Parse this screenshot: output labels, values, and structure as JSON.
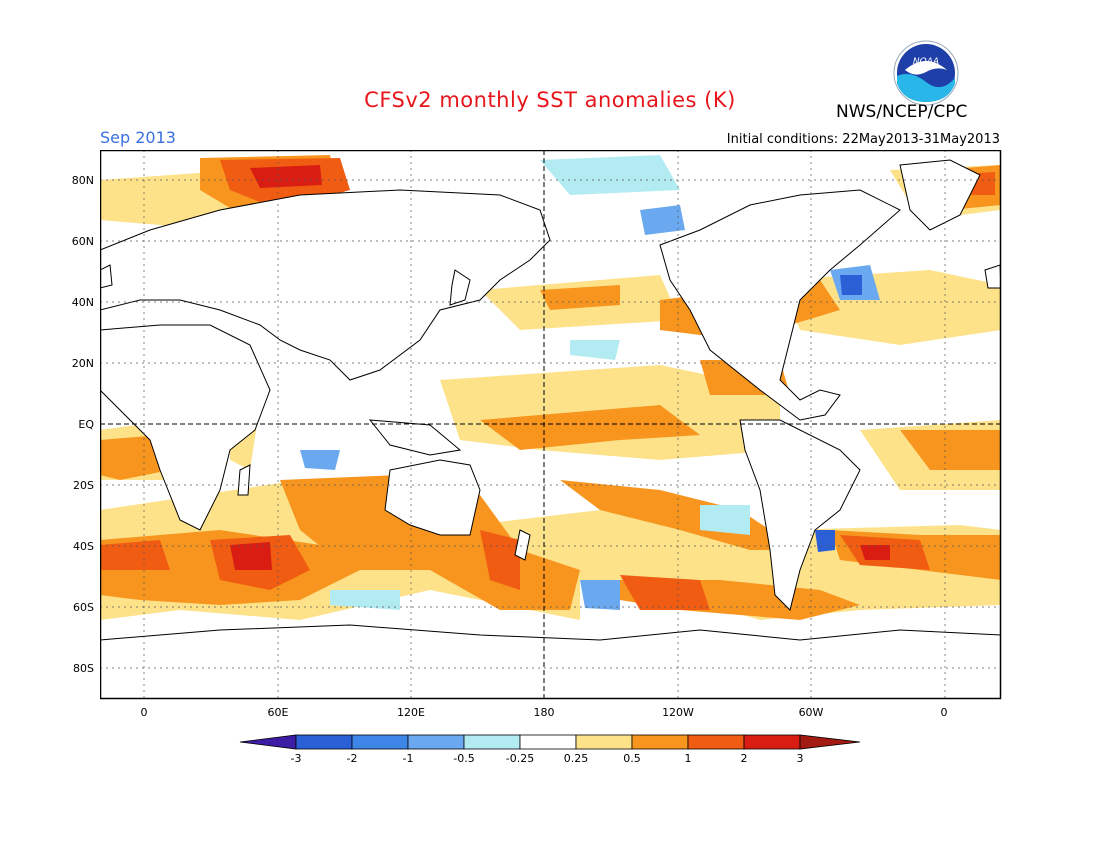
{
  "header": {
    "title": "CFSv2 monthly SST anomalies (K)",
    "org": "NWS/NCEP/CPC",
    "logo_text": "NOAA",
    "month": "Sep 2013",
    "initial_conditions": "Initial conditions: 22May2013-31May2013"
  },
  "axes": {
    "lat_labels": [
      "80N",
      "60N",
      "40N",
      "20N",
      "EQ",
      "20S",
      "40S",
      "60S",
      "80S"
    ],
    "lon_labels": [
      "0",
      "60E",
      "120E",
      "180",
      "120W",
      "60W",
      "0"
    ]
  },
  "colorbar": {
    "labels": [
      "-3",
      "-2",
      "-1",
      "-0.5",
      "-0.25",
      "0.25",
      "0.5",
      "1",
      "2",
      "3"
    ],
    "colors": [
      "#3d1da6",
      "#2a5fd6",
      "#3d86e8",
      "#6aa9f0",
      "#b2ebf2",
      "#ffffff",
      "#fde28a",
      "#f7951e",
      "#f05c12",
      "#d91d12",
      "#a31a12",
      "#6e4a3a"
    ]
  },
  "colors": {
    "title": "#e8161c",
    "month": "#3a6fe0",
    "coast": "#000000"
  }
}
